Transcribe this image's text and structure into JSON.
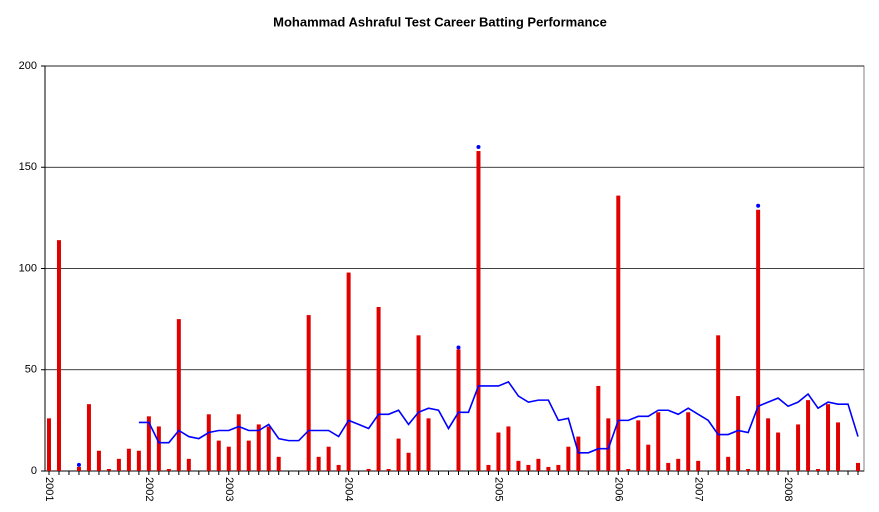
{
  "chart_data": {
    "type": "bar",
    "title": "Mohammad Ashraful Test Career Batting Performance",
    "categories": [
      "2001",
      null,
      null,
      null,
      null,
      null,
      null,
      null,
      null,
      null,
      "2002",
      null,
      null,
      null,
      null,
      null,
      null,
      null,
      "2003",
      null,
      null,
      null,
      null,
      null,
      null,
      null,
      null,
      null,
      null,
      null,
      "2004",
      null,
      null,
      null,
      null,
      null,
      null,
      null,
      null,
      null,
      null,
      null,
      null,
      null,
      null,
      "2005",
      null,
      null,
      null,
      null,
      null,
      null,
      null,
      null,
      null,
      null,
      null,
      "2006",
      null,
      null,
      null,
      null,
      null,
      null,
      null,
      "2007",
      null,
      null,
      null,
      null,
      null,
      null,
      null,
      null,
      "2008",
      null,
      null,
      null,
      null,
      null,
      null,
      null
    ],
    "series": [
      {
        "type": "bar",
        "color": "#e00000",
        "values": [
          26,
          114,
          0,
          2,
          33,
          10,
          1,
          6,
          11,
          10,
          27,
          22,
          1,
          75,
          6,
          0,
          28,
          15,
          12,
          28,
          15,
          23,
          22,
          7,
          0,
          0,
          77,
          7,
          12,
          3,
          98,
          0,
          1,
          81,
          1,
          16,
          9,
          67,
          26,
          0,
          0,
          60,
          0,
          158,
          3,
          19,
          22,
          5,
          3,
          6,
          2,
          3,
          12,
          17,
          0,
          42,
          26,
          136,
          1,
          25,
          13,
          29,
          4,
          6,
          29,
          5,
          0,
          67,
          7,
          37,
          1,
          129,
          26,
          19,
          0,
          23,
          35,
          1,
          33,
          24,
          0,
          4
        ]
      },
      {
        "type": "line",
        "color": "#0000ff",
        "values": [
          null,
          null,
          null,
          null,
          null,
          null,
          null,
          null,
          null,
          24,
          24,
          14,
          14,
          20,
          17,
          16,
          19,
          20,
          20,
          22,
          20,
          20,
          23,
          16,
          15,
          15,
          20,
          20,
          20,
          17,
          25,
          23,
          21,
          28,
          28,
          30,
          23,
          29,
          31,
          30,
          21,
          29,
          29,
          42,
          42,
          42,
          44,
          37,
          34,
          35,
          35,
          25,
          26,
          9,
          9,
          11,
          11,
          25,
          25,
          27,
          27,
          30,
          30,
          28,
          31,
          28,
          25,
          18,
          18,
          20,
          19,
          32,
          34,
          36,
          32,
          34,
          38,
          31,
          34,
          33,
          33,
          17
        ]
      },
      {
        "type": "scatter",
        "color": "#0000ff",
        "values": [
          null,
          null,
          null,
          3,
          null,
          null,
          null,
          null,
          null,
          null,
          null,
          null,
          null,
          null,
          null,
          null,
          null,
          null,
          null,
          null,
          null,
          null,
          null,
          null,
          null,
          null,
          null,
          null,
          null,
          null,
          null,
          null,
          null,
          null,
          null,
          null,
          null,
          null,
          null,
          null,
          null,
          61,
          null,
          160,
          null,
          null,
          null,
          null,
          null,
          null,
          null,
          null,
          null,
          null,
          null,
          null,
          null,
          null,
          null,
          null,
          null,
          null,
          null,
          null,
          null,
          null,
          null,
          null,
          null,
          null,
          null,
          131,
          null,
          null,
          null,
          null,
          null,
          null,
          null,
          null,
          null,
          null
        ]
      }
    ],
    "ylim": [
      0,
      200
    ],
    "yticks": [
      0,
      50,
      100,
      150,
      200
    ],
    "grid": true
  }
}
